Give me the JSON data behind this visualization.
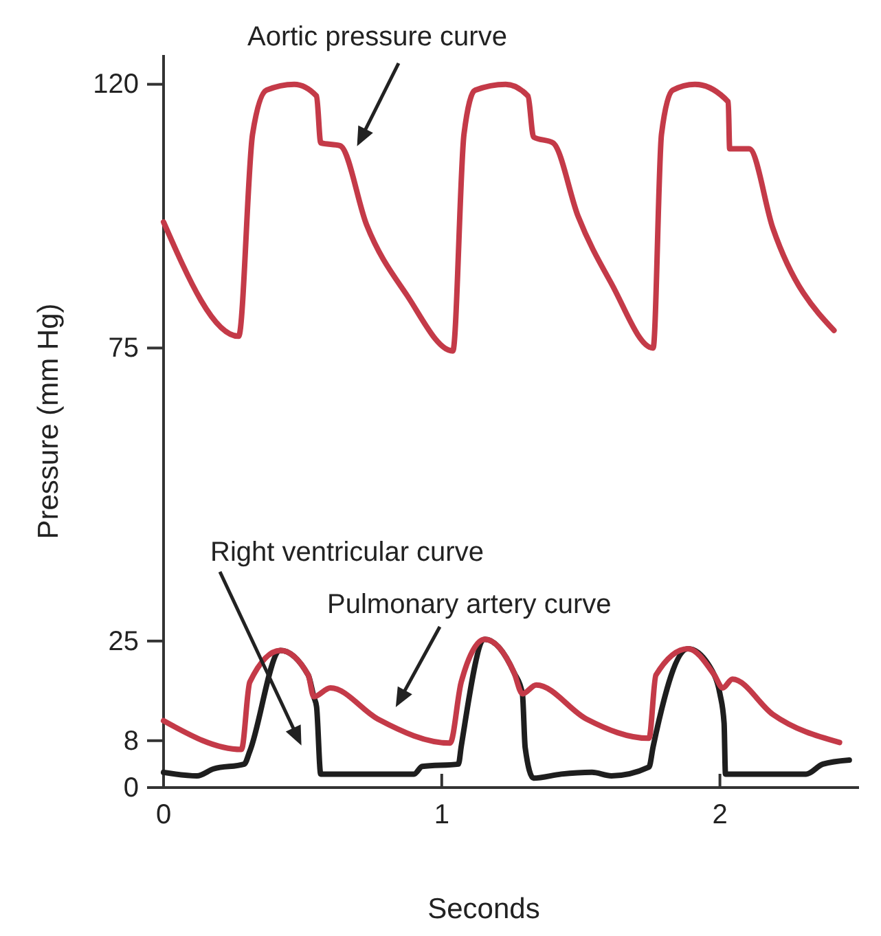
{
  "chart_data": {
    "type": "line",
    "xlabel": "Seconds",
    "ylabel": "Pressure (mm Hg)",
    "xlim": [
      0,
      2.5
    ],
    "xticks": [
      0,
      1,
      2
    ],
    "ylim": [
      0,
      125
    ],
    "yticks": [
      0,
      8,
      25,
      75,
      120
    ],
    "grid": false,
    "marker": "none",
    "line_style": "solid",
    "series": [
      {
        "color": "#c43a48",
        "x": [
          0,
          0.27,
          0.32,
          0.37,
          0.47,
          0.55,
          0.565,
          0.635,
          0.73,
          0.875,
          1.04,
          1.08,
          1.12,
          1.23,
          1.31,
          1.33,
          1.4,
          1.49,
          1.61,
          1.76,
          1.79,
          1.83,
          1.91,
          2.03,
          2.035,
          2.105,
          2.19,
          2.41
        ],
        "values": [
          96.5,
          77,
          111.5,
          119,
          120,
          118,
          110,
          109.5,
          96,
          84,
          74.5,
          111.5,
          119,
          120,
          118,
          111,
          110,
          97.5,
          86,
          75,
          111.5,
          119,
          120,
          117,
          109,
          109,
          95.5,
          78
        ]
      },
      {
        "color": "#c43a48",
        "x": [
          0,
          0.28,
          0.31,
          0.42,
          0.52,
          0.54,
          0.6,
          0.77,
          1.03,
          1.07,
          1.155,
          1.26,
          1.29,
          1.34,
          1.52,
          1.745,
          1.77,
          1.885,
          1.98,
          2.01,
          2.045,
          2.19,
          2.43
        ],
        "values": [
          11.4,
          6.5,
          18,
          23.4,
          19.2,
          15.5,
          17,
          11.7,
          7.6,
          18,
          25.3,
          19.6,
          16,
          17.5,
          11.7,
          8.4,
          19.2,
          23.7,
          19.2,
          17,
          18.5,
          12.5,
          7.7
        ]
      },
      {
        "color": "#1e1e1e",
        "x": [
          0,
          0.12,
          0.18,
          0.29,
          0.31,
          0.42,
          0.52,
          0.54,
          0.55,
          0.565,
          0.9,
          0.93,
          1.06,
          1.07,
          1.155,
          1.26,
          1.29,
          1.3,
          1.33,
          1.43,
          1.54,
          1.61,
          1.745,
          1.76,
          1.885,
          1.98,
          2.0,
          2.015,
          2.02,
          2.31,
          2.37,
          2.465
        ],
        "values": [
          2.6,
          2,
          3.2,
          4,
          6.2,
          23.4,
          19.2,
          15.5,
          13.8,
          2.3,
          2.3,
          3.6,
          4,
          7,
          25.3,
          19.6,
          16,
          6.8,
          1.6,
          2.3,
          2.6,
          2,
          3.5,
          7,
          23.7,
          19.2,
          16,
          11,
          2.3,
          2.3,
          4,
          4.7
        ]
      }
    ],
    "annotations": [
      "Aortic pressure curve",
      "Right ventricular curve",
      "Pulmonary artery curve"
    ]
  }
}
